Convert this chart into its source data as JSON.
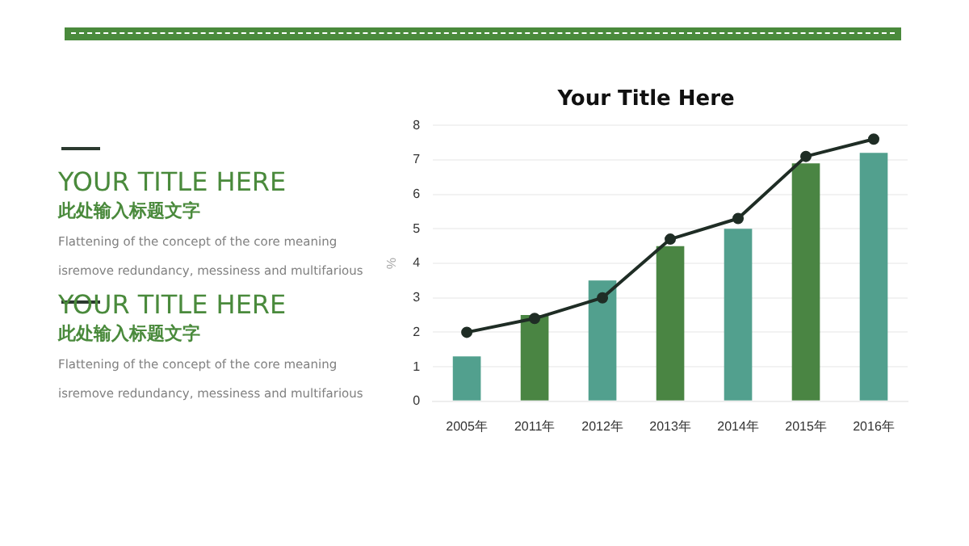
{
  "chart_data": {
    "type": "bar",
    "title": "Your Title Here",
    "ylabel": "%",
    "categories": [
      "2005年",
      "2011年",
      "2012年",
      "2013年",
      "2014年",
      "2015年",
      "2016年"
    ],
    "series": [
      {
        "colors": [
          "#52a08e",
          "#4a8543",
          "#52a08e",
          "#4a8543",
          "#52a08e",
          "#4a8543",
          "#52a08e"
        ],
        "values": [
          1.3,
          2.5,
          3.5,
          4.5,
          5.0,
          6.9,
          7.2
        ]
      },
      {
        "type": "line",
        "color": "#1f2d25",
        "values": [
          2.0,
          2.4,
          3.0,
          4.7,
          5.3,
          7.1,
          7.6
        ]
      }
    ],
    "ylim": [
      0,
      8
    ],
    "yticks": [
      0,
      1,
      2,
      3,
      4,
      5,
      6,
      7,
      8
    ],
    "grid": "y",
    "legend": false,
    "marker": "circle",
    "line_style": "solid",
    "annotations": [
      "YOUR TITLE HERE",
      "此处输入标题文字",
      "Flattening of the concept of the core meaning isremove redundancy, messiness and multifarious",
      "YOUR TITLE HERE",
      "此处输入标题文字",
      "Flattening of the concept of the core meaning isremove redundancy, messiness and multifarious"
    ]
  }
}
